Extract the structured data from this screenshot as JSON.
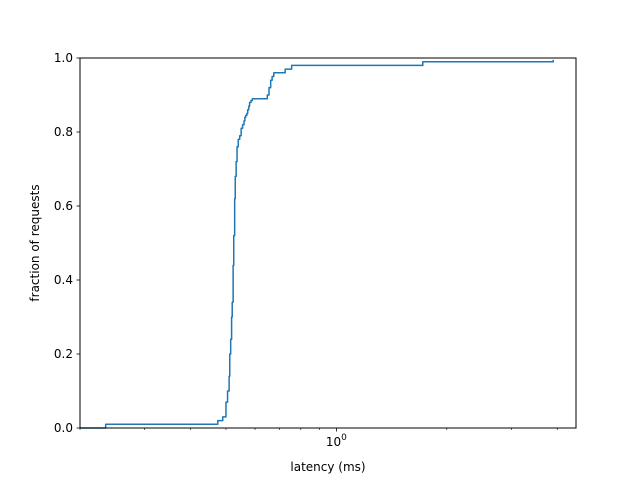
{
  "chart_data": {
    "type": "line",
    "title": "",
    "xlabel": "latency (ms)",
    "ylabel": "fraction of requests",
    "xscale": "log",
    "xlim": [
      0.2,
      4.5
    ],
    "ylim": [
      0,
      1
    ],
    "x_major_ticks": [
      {
        "value": 1,
        "label": "10^0"
      }
    ],
    "x_minor_ticks": [
      0.2,
      0.3,
      0.4,
      0.5,
      0.6,
      0.7,
      0.8,
      0.9,
      2,
      3,
      4
    ],
    "y_ticks": [
      0.0,
      0.2,
      0.4,
      0.6,
      0.8,
      1.0
    ],
    "y_tick_labels": [
      "0.0",
      "0.2",
      "0.4",
      "0.6",
      "0.8",
      "1.0"
    ],
    "grid": false,
    "legend": "none",
    "line_color": "#1f77b4",
    "series": [
      {
        "step": "post",
        "x": [
          0.2,
          0.235,
          0.475,
          0.49,
          0.5,
          0.505,
          0.51,
          0.512,
          0.515,
          0.518,
          0.52,
          0.523,
          0.525,
          0.528,
          0.53,
          0.533,
          0.536,
          0.54,
          0.545,
          0.55,
          0.555,
          0.56,
          0.563,
          0.566,
          0.57,
          0.573,
          0.577,
          0.58,
          0.585,
          0.59,
          0.6,
          0.648,
          0.655,
          0.662,
          0.668,
          0.675,
          0.69,
          0.725,
          0.755,
          1.72,
          3.9,
          3.9
        ],
        "y": [
          0.0,
          0.01,
          0.02,
          0.03,
          0.07,
          0.1,
          0.14,
          0.2,
          0.24,
          0.3,
          0.34,
          0.44,
          0.52,
          0.62,
          0.68,
          0.72,
          0.76,
          0.78,
          0.79,
          0.81,
          0.82,
          0.83,
          0.84,
          0.845,
          0.85,
          0.86,
          0.87,
          0.88,
          0.885,
          0.89,
          0.89,
          0.9,
          0.92,
          0.94,
          0.95,
          0.96,
          0.96,
          0.97,
          0.98,
          0.99,
          0.995,
          0.995
        ]
      }
    ]
  }
}
